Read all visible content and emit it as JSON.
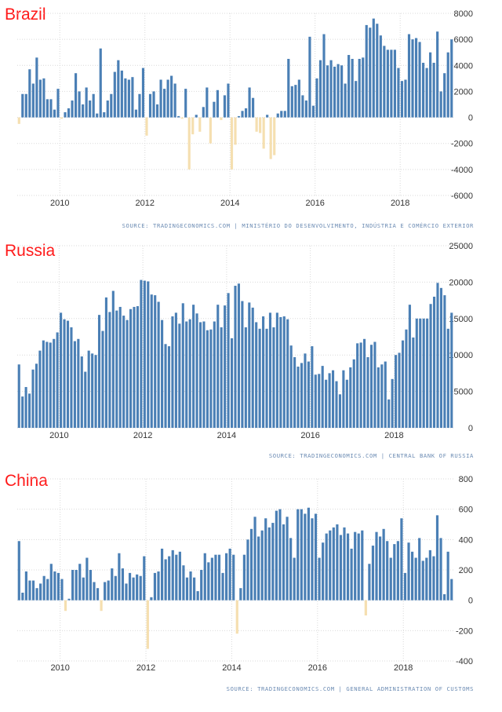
{
  "chart_data": [
    {
      "type": "bar",
      "title": "Brazil",
      "source": "SOURCE: TRADINGECONOMICS.COM | MINISTÉRIO DO DESENVOLVIMENTO, INDÚSTRIA E COMÉRCIO EXTERIOR",
      "ylim": [
        -6000,
        8000
      ],
      "yticks": [
        8000,
        6000,
        4000,
        2000,
        0,
        -2000,
        -4000,
        -6000
      ],
      "xticks": [
        "2010",
        "2012",
        "2014",
        "2016",
        "2018"
      ],
      "start": "2009-01",
      "positive_color": "#4a7fb5",
      "negative_color": "#f5dfb0",
      "values": [
        -500,
        1800,
        1800,
        3700,
        2600,
        4600,
        2900,
        3000,
        1400,
        1400,
        600,
        2200,
        -100,
        400,
        700,
        1300,
        3400,
        2000,
        1000,
        2300,
        1300,
        1800,
        300,
        5300,
        400,
        1300,
        1800,
        3500,
        4400,
        3600,
        3000,
        2900,
        3100,
        600,
        1800,
        3800,
        -1400,
        1800,
        2000,
        1000,
        2900,
        2200,
        2900,
        3200,
        2600,
        100,
        -100,
        2200,
        -4000,
        -1300,
        200,
        -1100,
        800,
        2300,
        -2000,
        1200,
        2100,
        -200,
        1700,
        2600,
        -4000,
        -2100,
        100,
        500,
        700,
        2300,
        1500,
        -1100,
        -1200,
        -2400,
        200,
        -3200,
        -2900,
        300,
        500,
        500,
        4500,
        2400,
        2500,
        2900,
        1700,
        1300,
        6200,
        900,
        3000,
        4400,
        6400,
        4000,
        4400,
        3900,
        4100,
        4000,
        2600,
        4800,
        4500,
        2800,
        4500,
        4600,
        7100,
        6900,
        7600,
        7200,
        6300,
        5500,
        5200,
        5200,
        5200,
        3800,
        2800,
        2900,
        6400,
        6000,
        6100,
        5800,
        4200,
        3800,
        5000,
        4200,
        6600,
        2000,
        3400,
        5000,
        6000
      ]
    },
    {
      "type": "bar",
      "title": "Russia",
      "source": "SOURCE: TRADINGECONOMICS.COM | CENTRAL BANK OF RUSSIA",
      "ylim": [
        0,
        25000
      ],
      "yticks": [
        25000,
        20000,
        15000,
        10000,
        5000,
        0
      ],
      "xticks": [
        "2010",
        "2012",
        "2014",
        "2016",
        "2018"
      ],
      "start": "2009-01",
      "positive_color": "#4a7fb5",
      "negative_color": "#f5dfb0",
      "values": [
        8700,
        4300,
        5600,
        4700,
        8000,
        8800,
        10600,
        12000,
        11800,
        11700,
        12200,
        13100,
        15800,
        14900,
        14700,
        13800,
        11900,
        12200,
        9800,
        7700,
        10600,
        10200,
        10000,
        15500,
        13300,
        17900,
        15900,
        18800,
        16100,
        16600,
        15400,
        14800,
        16300,
        16600,
        16700,
        20300,
        20200,
        20100,
        18300,
        18200,
        17300,
        14800,
        11500,
        11200,
        15300,
        15800,
        14300,
        17100,
        14600,
        14900,
        16900,
        15700,
        14500,
        14600,
        13400,
        13500,
        14600,
        16900,
        13800,
        16800,
        18500,
        12300,
        19500,
        19800,
        17400,
        13800,
        17200,
        16500,
        14500,
        13600,
        15300,
        13600,
        15800,
        13800,
        15800,
        15200,
        15300,
        14900,
        11300,
        9700,
        8400,
        8900,
        10200,
        9100,
        11200,
        7300,
        7400,
        8500,
        6600,
        7500,
        7900,
        6400,
        4600,
        7900,
        6600,
        8300,
        9400,
        11600,
        11700,
        12200,
        9700,
        11400,
        11800,
        8300,
        8700,
        9100,
        3900,
        6700,
        10000,
        10300,
        12000,
        13500,
        16900,
        12400,
        15000,
        15000,
        15000,
        15000,
        17000,
        18000,
        19900,
        19200,
        18200,
        13600,
        15800
      ]
    },
    {
      "type": "bar",
      "title": "China",
      "source": "SOURCE: TRADINGECONOMICS.COM | GENERAL ADMINISTRATION OF CUSTOMS",
      "ylim": [
        -400,
        800
      ],
      "yticks": [
        800,
        600,
        400,
        200,
        0,
        -200,
        -400
      ],
      "xticks": [
        "2010",
        "2012",
        "2014",
        "2016",
        "2018"
      ],
      "start": "2009-01",
      "positive_color": "#4a7fb5",
      "negative_color": "#f5dfb0",
      "values": [
        390,
        50,
        190,
        130,
        130,
        80,
        110,
        160,
        140,
        240,
        190,
        180,
        140,
        -70,
        10,
        200,
        200,
        240,
        150,
        280,
        200,
        120,
        80,
        -70,
        120,
        130,
        210,
        160,
        310,
        210,
        110,
        180,
        150,
        170,
        160,
        290,
        -320,
        20,
        180,
        190,
        340,
        270,
        290,
        330,
        300,
        320,
        230,
        150,
        190,
        150,
        60,
        200,
        310,
        250,
        280,
        300,
        300,
        180,
        310,
        340,
        300,
        -220,
        80,
        300,
        400,
        470,
        550,
        420,
        460,
        540,
        480,
        510,
        590,
        600,
        500,
        550,
        410,
        280,
        600,
        600,
        570,
        610,
        540,
        570,
        280,
        380,
        440,
        460,
        480,
        500,
        430,
        480,
        440,
        340,
        450,
        440,
        460,
        -100,
        240,
        360,
        450,
        420,
        470,
        390,
        280,
        370,
        390,
        540,
        180,
        380,
        320,
        280,
        410,
        260,
        280,
        330,
        290,
        560,
        410,
        40,
        320,
        140
      ]
    }
  ]
}
